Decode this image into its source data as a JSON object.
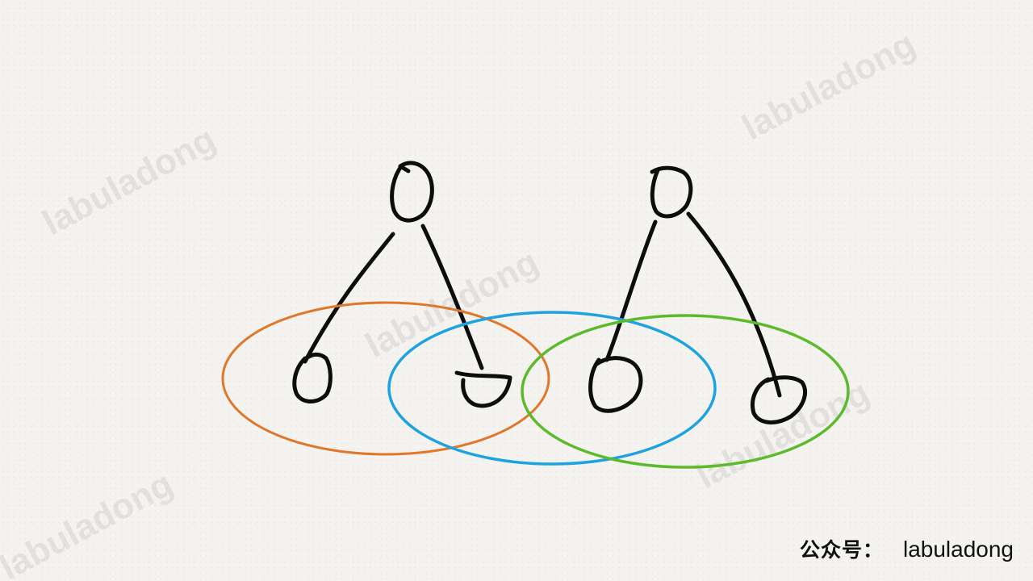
{
  "watermark": {
    "text": "labuladong"
  },
  "footer": {
    "prefix": "公众号：",
    "handle": "labuladong"
  },
  "colors": {
    "ink": "#0d0d0d",
    "orange_group": "#e0782c",
    "blue_group": "#1fa2e0",
    "green_group": "#5cbb2c",
    "paper": "#f4f3f0"
  }
}
